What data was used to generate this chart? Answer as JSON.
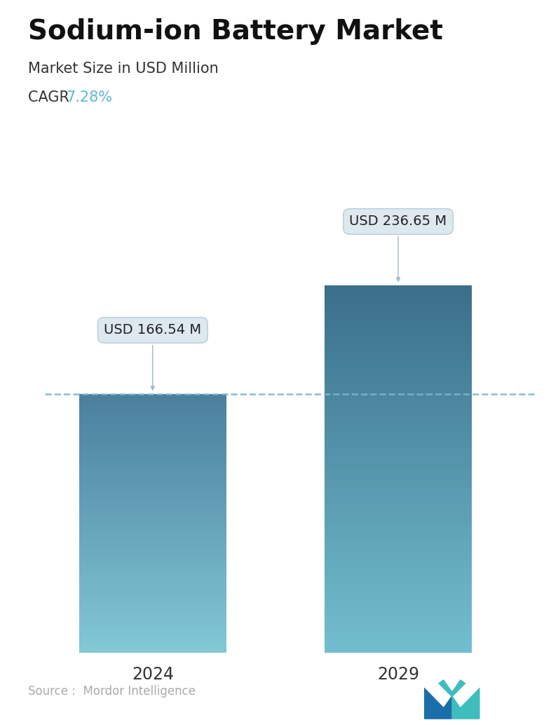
{
  "title": "Sodium-ion Battery Market",
  "subtitle": "Market Size in USD Million",
  "cagr_label": "CAGR  ",
  "cagr_value": "7.28%",
  "cagr_color": "#5bb8d4",
  "categories": [
    "2024",
    "2029"
  ],
  "values": [
    166.54,
    236.65
  ],
  "value_labels": [
    "USD 166.54 M",
    "USD 236.65 M"
  ],
  "bar_top_color": [
    "#4a7f9e",
    "#3a6e8a"
  ],
  "bar_bottom_color": [
    "#82c8d5",
    "#72bece"
  ],
  "dashed_line_color": "#7ab8cc",
  "source_text": "Source :  Mordor Intelligence",
  "source_color": "#aaaaaa",
  "background_color": "#ffffff",
  "title_fontsize": 28,
  "subtitle_fontsize": 15,
  "cagr_fontsize": 15,
  "xlabel_fontsize": 17,
  "annotation_fontsize": 14,
  "ylim": [
    0,
    290
  ]
}
